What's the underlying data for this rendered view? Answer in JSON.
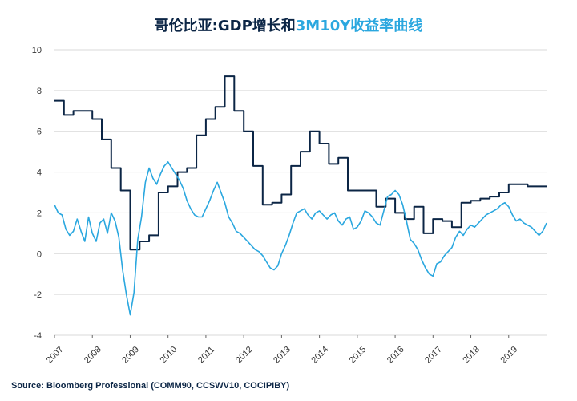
{
  "chart_data": {
    "type": "line",
    "title_part1": "哥伦比亚:GDP增长和",
    "title_part2": "3M10Y收益率曲线",
    "source": "Source: Bloomberg Professional  (COMM90, CCSWV10, COCIPIBY)",
    "xlabel": "",
    "ylabel": "",
    "ylim": [
      -4,
      10
    ],
    "xlim": [
      2007,
      2020.0
    ],
    "yticks": [
      "10",
      "8",
      "6",
      "4",
      "2",
      "0",
      "-2",
      "-4"
    ],
    "ytick_values": [
      10,
      8,
      6,
      4,
      2,
      0,
      -2,
      -4
    ],
    "xticks": [
      "2007",
      "2008",
      "2009",
      "2010",
      "2011",
      "2012",
      "2013",
      "2014",
      "2015",
      "2016",
      "2017",
      "2018",
      "2019"
    ],
    "grid": true,
    "colors": {
      "gdp": "#0b2545",
      "curve": "#2aa7df",
      "grid": "#d9d9d9"
    },
    "series": [
      {
        "key": "gdp",
        "style": "step",
        "x": [
          2007.0,
          2007.25,
          2007.5,
          2007.75,
          2008.0,
          2008.25,
          2008.5,
          2008.75,
          2009.0,
          2009.25,
          2009.5,
          2009.75,
          2010.0,
          2010.25,
          2010.5,
          2010.75,
          2011.0,
          2011.25,
          2011.5,
          2011.75,
          2012.0,
          2012.25,
          2012.5,
          2012.75,
          2013.0,
          2013.25,
          2013.5,
          2013.75,
          2014.0,
          2014.25,
          2014.5,
          2014.75,
          2015.0,
          2015.25,
          2015.5,
          2015.75,
          2016.0,
          2016.25,
          2016.5,
          2016.75,
          2017.0,
          2017.25,
          2017.5,
          2017.75,
          2018.0,
          2018.25,
          2018.5,
          2018.75,
          2019.0,
          2019.25,
          2019.5,
          2019.75,
          2020.0
        ],
        "values": [
          7.5,
          6.8,
          7.0,
          7.0,
          6.6,
          5.6,
          4.2,
          3.1,
          0.2,
          0.6,
          0.9,
          3.0,
          3.3,
          4.0,
          4.2,
          5.8,
          6.6,
          7.2,
          8.7,
          7.0,
          6.0,
          4.3,
          2.4,
          2.5,
          2.9,
          4.3,
          5.0,
          6.0,
          5.4,
          4.4,
          4.7,
          3.1,
          3.1,
          3.1,
          2.3,
          2.7,
          2.0,
          1.7,
          2.3,
          1.0,
          1.7,
          1.6,
          1.3,
          2.5,
          2.6,
          2.7,
          2.8,
          3.0,
          3.4,
          3.4,
          3.3,
          3.3,
          3.3
        ]
      },
      {
        "key": "curve",
        "style": "line",
        "x": [
          2007.0,
          2007.1,
          2007.2,
          2007.3,
          2007.4,
          2007.5,
          2007.6,
          2007.7,
          2007.8,
          2007.9,
          2008.0,
          2008.1,
          2008.2,
          2008.3,
          2008.4,
          2008.5,
          2008.6,
          2008.7,
          2008.8,
          2008.9,
          2009.0,
          2009.1,
          2009.2,
          2009.3,
          2009.4,
          2009.5,
          2009.6,
          2009.7,
          2009.8,
          2009.9,
          2010.0,
          2010.1,
          2010.2,
          2010.3,
          2010.4,
          2010.5,
          2010.6,
          2010.7,
          2010.8,
          2010.9,
          2011.0,
          2011.1,
          2011.2,
          2011.3,
          2011.4,
          2011.5,
          2011.6,
          2011.7,
          2011.8,
          2011.9,
          2012.0,
          2012.1,
          2012.2,
          2012.3,
          2012.4,
          2012.5,
          2012.6,
          2012.7,
          2012.8,
          2012.9,
          2013.0,
          2013.1,
          2013.2,
          2013.3,
          2013.4,
          2013.5,
          2013.6,
          2013.7,
          2013.8,
          2013.9,
          2014.0,
          2014.1,
          2014.2,
          2014.3,
          2014.4,
          2014.5,
          2014.6,
          2014.7,
          2014.8,
          2014.9,
          2015.0,
          2015.1,
          2015.2,
          2015.3,
          2015.4,
          2015.5,
          2015.6,
          2015.7,
          2015.8,
          2015.9,
          2016.0,
          2016.1,
          2016.2,
          2016.3,
          2016.4,
          2016.5,
          2016.6,
          2016.7,
          2016.8,
          2016.9,
          2017.0,
          2017.1,
          2017.2,
          2017.3,
          2017.4,
          2017.5,
          2017.6,
          2017.7,
          2017.8,
          2017.9,
          2018.0,
          2018.1,
          2018.2,
          2018.3,
          2018.4,
          2018.5,
          2018.6,
          2018.7,
          2018.8,
          2018.9,
          2019.0,
          2019.1,
          2019.2,
          2019.3,
          2019.4,
          2019.5,
          2019.6,
          2019.7,
          2019.8,
          2019.9,
          2020.0
        ],
        "values": [
          2.4,
          2.0,
          1.9,
          1.2,
          0.9,
          1.1,
          1.7,
          1.1,
          0.6,
          1.8,
          1.0,
          0.6,
          1.5,
          1.7,
          1.0,
          2.0,
          1.6,
          0.8,
          -0.8,
          -2.0,
          -3.0,
          -1.9,
          0.7,
          1.8,
          3.5,
          4.2,
          3.7,
          3.4,
          3.9,
          4.3,
          4.5,
          4.2,
          3.9,
          3.6,
          3.2,
          2.6,
          2.2,
          1.9,
          1.8,
          1.8,
          2.2,
          2.6,
          3.1,
          3.5,
          3.0,
          2.5,
          1.8,
          1.5,
          1.1,
          1.0,
          0.8,
          0.6,
          0.4,
          0.2,
          0.1,
          -0.1,
          -0.4,
          -0.7,
          -0.8,
          -0.6,
          0.0,
          0.4,
          0.9,
          1.5,
          2.0,
          2.1,
          2.2,
          1.9,
          1.7,
          2.0,
          2.1,
          1.9,
          1.7,
          1.9,
          2.0,
          1.6,
          1.4,
          1.7,
          1.8,
          1.2,
          1.3,
          1.6,
          2.1,
          2.0,
          1.8,
          1.5,
          1.4,
          2.1,
          2.8,
          2.9,
          3.1,
          2.9,
          2.4,
          1.6,
          0.7,
          0.5,
          0.2,
          -0.3,
          -0.7,
          -1.0,
          -1.1,
          -0.5,
          -0.4,
          -0.1,
          0.1,
          0.3,
          0.8,
          1.1,
          0.9,
          1.2,
          1.4,
          1.3,
          1.5,
          1.7,
          1.9,
          2.0,
          2.1,
          2.2,
          2.4,
          2.5,
          2.3,
          1.9,
          1.6,
          1.7,
          1.5,
          1.4,
          1.3,
          1.1,
          0.9,
          1.1,
          1.5
        ]
      }
    ]
  }
}
